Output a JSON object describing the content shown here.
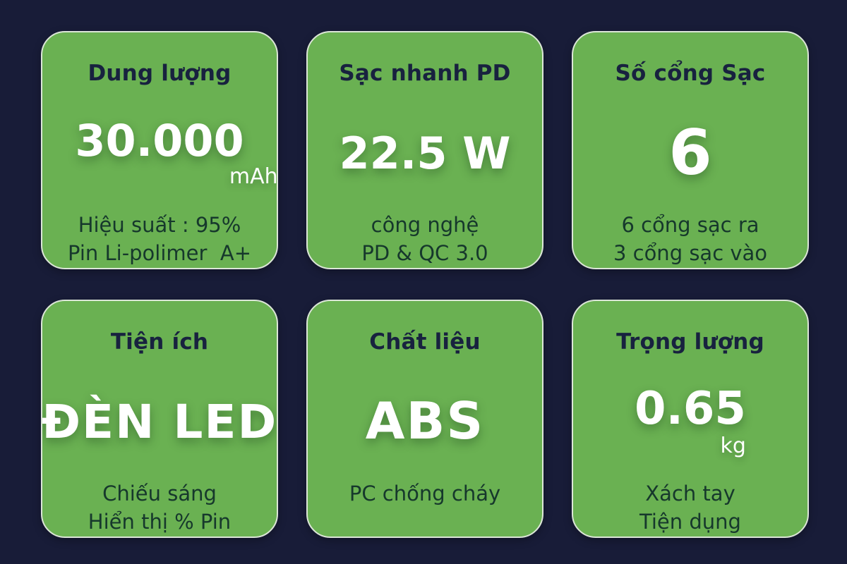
{
  "page": {
    "background_color": "#181c38",
    "card_color": "#6ab152",
    "card_border_color": "#dce6d8",
    "title_color": "#18223f",
    "value_color": "#ffffff",
    "subtitle_color": "#16382c"
  },
  "cards": [
    {
      "title": "Dung lượng",
      "value": "30.000",
      "unit": "mAh",
      "subtitle_lines": [
        "Hiệu suất : 95%",
        "Pin Li-polimer  A+"
      ]
    },
    {
      "title": "Sạc nhanh PD",
      "value": "22.5 W",
      "unit": "",
      "subtitle_lines": [
        "công nghệ",
        "PD & QC 3.0"
      ]
    },
    {
      "title": "Số cổng Sạc",
      "value": "6",
      "unit": "",
      "subtitle_lines": [
        "6 cổng sạc ra",
        "3 cổng sạc vào"
      ]
    },
    {
      "title": "Tiện ích",
      "value": "ĐÈN LED",
      "unit": "",
      "subtitle_lines": [
        "Chiếu sáng",
        "Hiển thị % Pin"
      ]
    },
    {
      "title": "Chất liệu",
      "value": "ABS",
      "unit": "",
      "subtitle_lines": [
        "PC chống cháy",
        ""
      ]
    },
    {
      "title": "Trọng lượng",
      "value": "0.65",
      "unit": "kg",
      "subtitle_lines": [
        "Xách tay",
        "Tiện dụng"
      ]
    }
  ]
}
